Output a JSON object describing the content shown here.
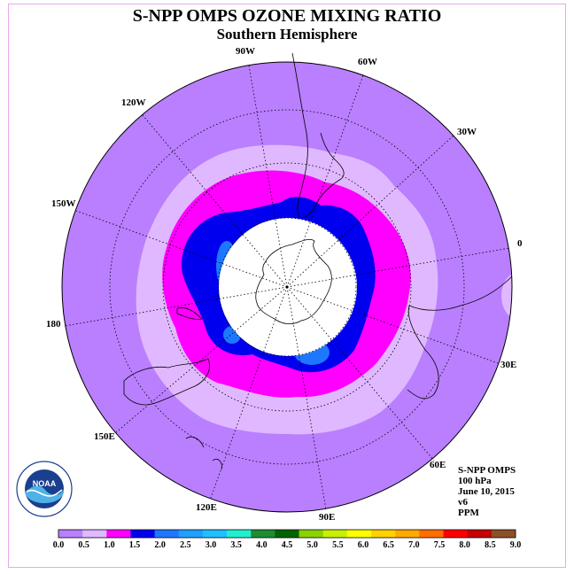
{
  "title": "S-NPP OMPS OZONE MIXING RATIO",
  "subtitle": "Southern Hemisphere",
  "longitude_labels": [
    "90W",
    "60W",
    "30W",
    "0",
    "30E",
    "60E",
    "90E",
    "120E",
    "150E",
    "180",
    "150W",
    "120W"
  ],
  "info": {
    "instrument": "S-NPP OMPS",
    "level": "100 hPa",
    "date": "June 10, 2015",
    "version": "v6",
    "units": "PPM"
  },
  "logo": {
    "text": "NOAA",
    "ring_text": "NATIONAL OCEANIC AND ATMOSPHERIC ADMINISTRATION · U.S. DEPARTMENT OF COMMERCE"
  },
  "colorbar": {
    "ticks": [
      "0.0",
      "0.5",
      "1.0",
      "1.5",
      "2.0",
      "2.5",
      "3.0",
      "3.5",
      "4.0",
      "4.5",
      "5.0",
      "5.5",
      "6.0",
      "6.5",
      "7.0",
      "7.5",
      "8.0",
      "8.5",
      "9.0"
    ],
    "colors": [
      "#b97fff",
      "#e0b8ff",
      "#ff00ff",
      "#0000ee",
      "#1e78ff",
      "#1ea0ff",
      "#1ec0ff",
      "#20f0d0",
      "#1e8c32",
      "#006400",
      "#8cd200",
      "#c8f000",
      "#ffff00",
      "#ffd200",
      "#ffaa00",
      "#ff6e00",
      "#ff0000",
      "#c80000",
      "#8c5028"
    ]
  },
  "colors": {
    "band_0_0.5": "#b97fff",
    "band_0.5_1.0": "#e0b8ff",
    "band_1.0_1.5": "#ff00ff",
    "band_1.5_2.0": "#0000ee",
    "band_2.0_2.5": "#1e78ff",
    "frame": "#e8a8e8"
  }
}
